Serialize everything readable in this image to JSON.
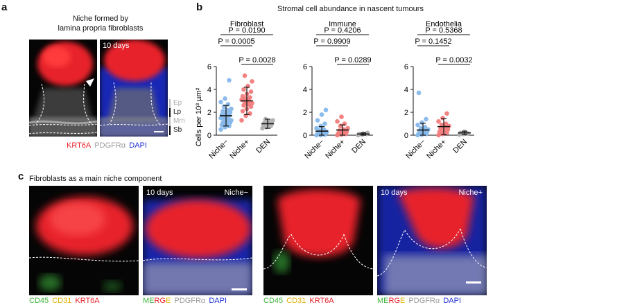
{
  "panel_a": {
    "letter": "a",
    "title_line1": "Niche formed by",
    "title_line2": "lamina propria fibroblasts",
    "image_label": "10 days",
    "layers": [
      "Ep",
      "Lp",
      "Mm",
      "Sb"
    ],
    "legend": {
      "red": "KRT6A",
      "grey": "PDGFRα",
      "blue": "DAPI"
    },
    "colors": {
      "red": "#e8202a",
      "grey": "#9a9a9a",
      "blue": "#1c2fd6"
    }
  },
  "panel_b": {
    "letter": "b",
    "title": "Stromal cell abundance in nascent tumours",
    "ylabel": "Cells per 10³ µm²"
  },
  "chart_data": [
    {
      "type": "scatter",
      "title": "Fibroblast",
      "categories": [
        "Niche−",
        "Niche+",
        "DEN"
      ],
      "ylim": [
        0,
        6
      ],
      "yticks": [
        0,
        2,
        4,
        6
      ],
      "means": [
        1.7,
        3.0,
        1.0
      ],
      "sd": [
        0.9,
        1.2,
        0.4
      ],
      "points": [
        [
          0.5,
          0.7,
          0.8,
          0.9,
          1.0,
          1.1,
          1.1,
          1.2,
          1.3,
          1.4,
          1.4,
          1.5,
          1.6,
          1.7,
          1.8,
          1.9,
          2.0,
          2.1,
          2.2,
          2.3,
          2.5,
          2.7,
          2.9,
          3.2,
          4.8
        ],
        [
          1.3,
          1.7,
          1.9,
          2.1,
          2.3,
          2.5,
          2.6,
          2.7,
          2.8,
          2.9,
          3.0,
          3.1,
          3.2,
          3.3,
          3.4,
          3.6,
          3.8,
          4.0,
          4.3,
          4.7,
          5.2
        ],
        [
          0.6,
          0.7,
          0.8,
          0.9,
          1.0,
          1.0,
          1.1,
          1.2,
          1.3,
          1.4
        ]
      ],
      "point_colors": [
        "#86b8ea",
        "#f27b7b",
        "#b0b0b0"
      ],
      "comparisons": [
        {
          "from": 0,
          "to": 2,
          "label": "P = 0.0190"
        },
        {
          "from": 0,
          "to": 1,
          "label": "P = 0.0005"
        },
        {
          "from": 1,
          "to": 2,
          "label": "P = 0.0028"
        }
      ]
    },
    {
      "type": "scatter",
      "title": "Immune",
      "categories": [
        "Niche−",
        "Niche+",
        "DEN"
      ],
      "ylim": [
        0,
        6
      ],
      "yticks": [
        0,
        2,
        4,
        6
      ],
      "means": [
        0.35,
        0.45,
        0.1
      ],
      "sd": [
        0.4,
        0.45,
        0.1
      ],
      "points": [
        [
          0.0,
          0.0,
          0.05,
          0.1,
          0.1,
          0.15,
          0.2,
          0.25,
          0.3,
          0.4,
          0.5,
          0.6,
          0.8,
          1.0,
          1.3,
          1.8,
          2.2
        ],
        [
          0.0,
          0.05,
          0.1,
          0.15,
          0.2,
          0.3,
          0.4,
          0.5,
          0.6,
          0.8,
          1.0,
          1.2,
          1.6
        ],
        [
          0.0,
          0.05,
          0.1,
          0.1,
          0.15,
          0.2
        ]
      ],
      "point_colors": [
        "#86b8ea",
        "#f27b7b",
        "#b0b0b0"
      ],
      "comparisons": [
        {
          "from": 0,
          "to": 2,
          "label": "P = 0.4206"
        },
        {
          "from": 0,
          "to": 1,
          "label": "P = 0.9909"
        },
        {
          "from": 1,
          "to": 2,
          "label": "P = 0.0289"
        }
      ]
    },
    {
      "type": "scatter",
      "title": "Endothelia",
      "categories": [
        "Niche−",
        "Niche+",
        "DEN"
      ],
      "ylim": [
        0,
        6
      ],
      "yticks": [
        0,
        2,
        4,
        6
      ],
      "means": [
        0.45,
        0.75,
        0.2
      ],
      "sd": [
        0.6,
        0.7,
        0.15
      ],
      "points": [
        [
          0.0,
          0.05,
          0.1,
          0.15,
          0.2,
          0.3,
          0.35,
          0.4,
          0.5,
          0.6,
          0.7,
          0.9,
          1.1,
          1.4,
          3.7
        ],
        [
          0.0,
          0.1,
          0.2,
          0.3,
          0.4,
          0.5,
          0.6,
          0.7,
          0.8,
          0.9,
          1.0,
          1.2,
          1.5,
          1.9
        ],
        [
          0.05,
          0.1,
          0.15,
          0.2,
          0.3
        ]
      ],
      "point_colors": [
        "#86b8ea",
        "#f27b7b",
        "#b0b0b0"
      ],
      "comparisons": [
        {
          "from": 0,
          "to": 2,
          "label": "P = 0.5368"
        },
        {
          "from": 0,
          "to": 1,
          "label": "P = 0.1452"
        },
        {
          "from": 1,
          "to": 2,
          "label": "P = 0.0032"
        }
      ]
    }
  ],
  "panel_c": {
    "letter": "c",
    "title": "Fibroblasts as a main niche component",
    "images": [
      {
        "left": "",
        "right": ""
      },
      {
        "left": "10 days",
        "right": "Niche−"
      },
      {
        "left": "",
        "right": ""
      },
      {
        "left": "10 days",
        "right": "Niche+"
      }
    ],
    "legend_a": {
      "green": "CD45",
      "yellow": "CD31",
      "red": "KRT6A"
    },
    "legend_b": {
      "m": "M",
      "green": "E",
      "red": "RG",
      "yellow": "E",
      "grey": "PDGFRα",
      "blue": "DAPI"
    },
    "colors": {
      "green": "#3cb43c",
      "yellow": "#e0b000",
      "red": "#e8202a",
      "grey": "#9a9a9a",
      "blue": "#1c2fd6"
    }
  }
}
